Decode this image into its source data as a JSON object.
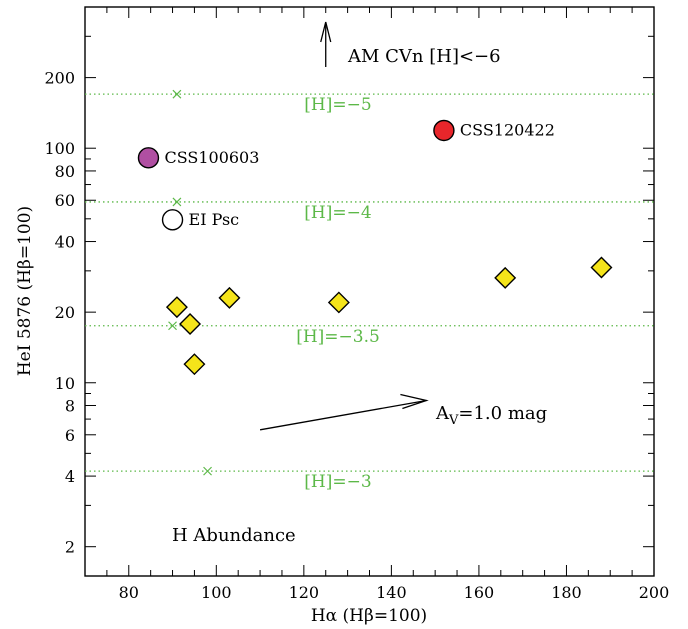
{
  "chart_data": {
    "type": "scatter",
    "xlabel": "Hα (Hβ=100)",
    "ylabel": "HeI 5876 (Hβ=100)",
    "xlim": [
      70,
      200
    ],
    "ylim": [
      1.5,
      400
    ],
    "yscale": "log",
    "xticks": [
      "80",
      "100",
      "120",
      "140",
      "160",
      "180",
      "200"
    ],
    "yticks": [
      "2",
      "4",
      "6",
      "8",
      "10",
      "20",
      "40",
      "60",
      "80",
      "100",
      "200"
    ],
    "colors": {
      "green": "#5cb848",
      "diamond": "#f5e41a",
      "css120422": "#e8262b",
      "css100603": "#b04fa2"
    },
    "abundance_lines": [
      {
        "y": 170,
        "label": "[H]=−5",
        "marker_x": 91
      },
      {
        "y": 59,
        "label": "[H]=−4",
        "marker_x": 91
      },
      {
        "y": 17.5,
        "label": "[H]=−3.5",
        "marker_x": 90
      },
      {
        "y": 4.2,
        "label": "[H]=−3",
        "marker_x": 98
      }
    ],
    "diamonds": [
      {
        "x": 91,
        "y": 21
      },
      {
        "x": 94,
        "y": 17.8
      },
      {
        "x": 95,
        "y": 12
      },
      {
        "x": 103,
        "y": 23
      },
      {
        "x": 128,
        "y": 22
      },
      {
        "x": 166,
        "y": 28
      },
      {
        "x": 188,
        "y": 31
      }
    ],
    "named_points": [
      {
        "x": 152,
        "y": 119,
        "label": "CSS120422",
        "fill": "#e8262b"
      },
      {
        "x": 84.5,
        "y": 91,
        "label": "CSS100603",
        "fill": "#b04fa2"
      },
      {
        "x": 90,
        "y": 49.5,
        "label": "EI Psc",
        "fill": "#ffffff"
      }
    ],
    "annotations": {
      "top_arrow": "AM CVn [H]<−6",
      "extinction_label": "A",
      "extinction_sub": "V",
      "extinction_value": "=1.0 mag",
      "extinction_vector": {
        "from": [
          110,
          6.3
        ],
        "to": [
          148,
          8.4
        ]
      },
      "abundance_title": "H Abundance"
    }
  }
}
